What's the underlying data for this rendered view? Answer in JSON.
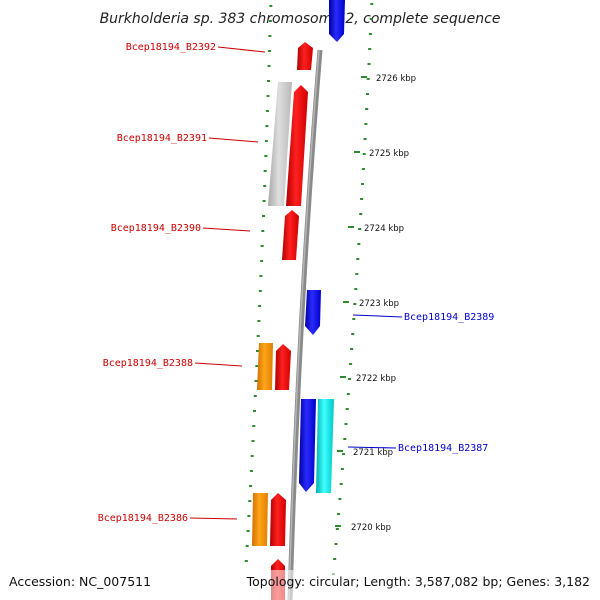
{
  "title": "Burkholderia sp. 383 chromosome 2, complete sequence",
  "footer": {
    "accession": "Accession: NC_007511",
    "topology": "Topology: circular; Length: 3,587,082 bp; Genes: 3,182"
  },
  "colors": {
    "forward_gene": "#ff0000",
    "reverse_gene": "#0000ff",
    "gray_feature": "#c8c8c8",
    "orange_feature": "#ff9900",
    "cyan_feature": "#00e5e5",
    "tick": "#2e8b2e",
    "backbone": "#888888",
    "forward_label": "#cc0000",
    "reverse_label": "#0000cc"
  },
  "scale_labels": [
    "2726 kbp",
    "2725 kbp",
    "2724 kbp",
    "2723 kbp",
    "2722 kbp",
    "2721 kbp",
    "2720 kbp"
  ],
  "gene_labels": [
    {
      "text": "Bcep18194_B2392",
      "strand": "forward"
    },
    {
      "text": "Bcep18194_B2391",
      "strand": "forward"
    },
    {
      "text": "Bcep18194_B2390",
      "strand": "forward"
    },
    {
      "text": "Bcep18194_B2389",
      "strand": "reverse"
    },
    {
      "text": "Bcep18194_B2388",
      "strand": "forward"
    },
    {
      "text": "Bcep18194_B2387",
      "strand": "reverse"
    },
    {
      "text": "Bcep18194_B2386",
      "strand": "forward"
    }
  ]
}
